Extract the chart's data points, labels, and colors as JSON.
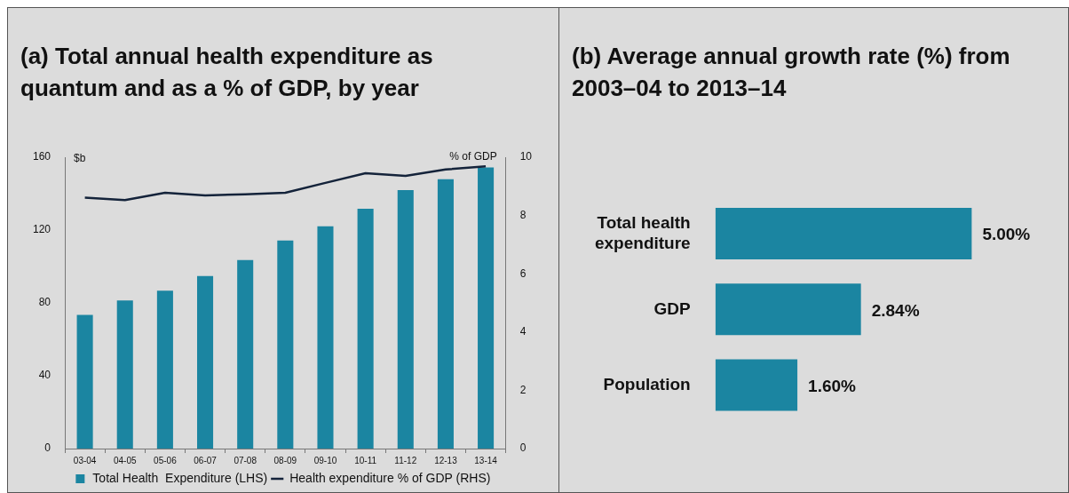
{
  "chart_data": [
    {
      "type": "bar",
      "title": "(a) Total annual health expenditure as quantum and as a % of GDP, by year",
      "categories": [
        "03-04",
        "04-05",
        "05-06",
        "06-07",
        "07-08",
        "08-09",
        "09-10",
        "10-11",
        "11-12",
        "12-13",
        "13-14"
      ],
      "series": [
        {
          "name": "Total Health  Expenditure (LHS)",
          "type": "bar",
          "color": "#1b85a1",
          "values": [
            73.4,
            81.4,
            86.7,
            94.7,
            103.5,
            114.3,
            122.1,
            131.7,
            141.9,
            147.9,
            154.4
          ]
        },
        {
          "name": "Health expenditure % of GDP (RHS)",
          "type": "line",
          "axis": "y2",
          "color": "#14233a",
          "values": [
            8.61,
            8.53,
            8.78,
            8.69,
            8.73,
            8.78,
            9.12,
            9.45,
            9.36,
            9.58,
            9.69
          ]
        }
      ],
      "ylabel": "$b",
      "y2label": "% of GDP",
      "ylim": [
        0,
        160
      ],
      "yticks": [
        0,
        40,
        80,
        120,
        160
      ],
      "y2lim": [
        0,
        10
      ],
      "y2ticks": [
        0,
        2,
        4,
        6,
        8,
        10
      ],
      "legend": "bottom"
    },
    {
      "type": "bar",
      "orientation": "horizontal",
      "title": "(b) Average annual growth rate (%) from 2003–04 to 2013–14",
      "categories": [
        "Total health expenditure",
        "GDP",
        "Population"
      ],
      "values": [
        5.0,
        2.84,
        1.6
      ],
      "color": "#1b85a1",
      "value_labels": [
        "5.00%",
        "2.84%",
        "1.60%"
      ],
      "tick_labels": "y"
    }
  ]
}
